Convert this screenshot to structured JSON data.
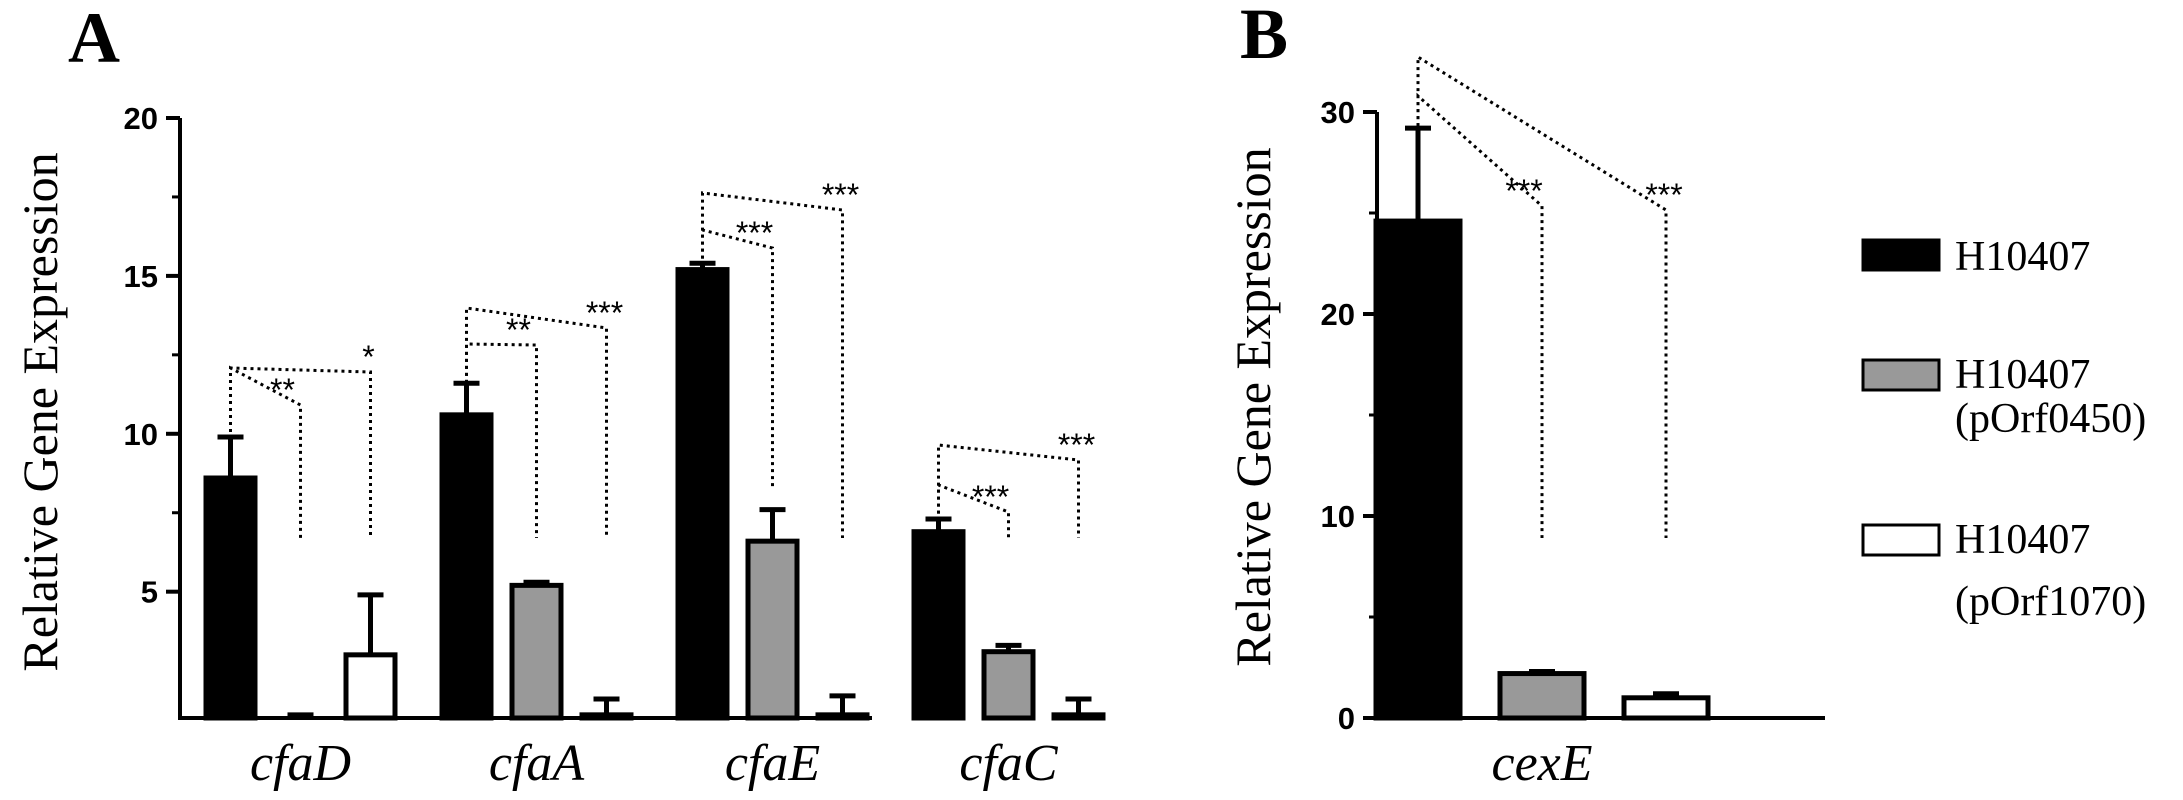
{
  "chart_data": [
    {
      "panel": "A",
      "type": "bar",
      "ylabel": "Relative Gene Expression",
      "y_ticks": [
        5,
        10,
        15,
        20
      ],
      "ylim": [
        1,
        20
      ],
      "categories": [
        "cfaD",
        "cfaA",
        "cfaE",
        "cfaC"
      ],
      "series": [
        {
          "name": "H10407",
          "color": "#000000",
          "values": [
            8.6,
            10.6,
            15.2,
            6.9
          ],
          "errors": [
            1.3,
            1.0,
            0.2,
            0.4
          ]
        },
        {
          "name": "H10407 (pOrf0450)",
          "color": "#999999",
          "values": [
            1.0,
            5.2,
            6.6,
            3.1
          ],
          "errors": [
            0.1,
            0.1,
            1.0,
            0.2
          ]
        },
        {
          "name": "H10407 (pOrf1070)",
          "color": "#ffffff",
          "values": [
            3.0,
            1.1,
            1.1,
            1.1
          ],
          "errors": [
            1.9,
            0.5,
            0.6,
            0.5
          ]
        }
      ],
      "significance": [
        {
          "category": "cfaD",
          "label": "**"
        },
        {
          "category": "cfaD",
          "label": "*"
        },
        {
          "category": "cfaA",
          "label": "**"
        },
        {
          "category": "cfaA",
          "label": "***"
        },
        {
          "category": "cfaE",
          "label": "***"
        },
        {
          "category": "cfaE",
          "label": "***"
        },
        {
          "category": "cfaC",
          "label": "***"
        },
        {
          "category": "cfaC",
          "label": "***"
        }
      ]
    },
    {
      "panel": "B",
      "type": "bar",
      "ylabel": "Relative Gene Expression",
      "y_ticks": [
        0,
        10,
        20,
        30
      ],
      "ylim": [
        0,
        30
      ],
      "categories": [
        "cexE"
      ],
      "series": [
        {
          "name": "H10407",
          "color": "#000000",
          "values": [
            24.6
          ],
          "errors": [
            4.6
          ]
        },
        {
          "name": "H10407 (pOrf0450)",
          "color": "#999999",
          "values": [
            2.2
          ],
          "errors": [
            0.1
          ]
        },
        {
          "name": "H10407 (pOrf1070)",
          "color": "#ffffff",
          "values": [
            1.0
          ],
          "errors": [
            0.2
          ]
        }
      ],
      "significance": [
        {
          "category": "cexE",
          "label": "***"
        },
        {
          "category": "cexE",
          "label": "***"
        }
      ]
    }
  ],
  "legend": {
    "items": [
      {
        "line1": "H10407",
        "line2": "",
        "color": "#000000"
      },
      {
        "line1": "H10407",
        "line2": "(pOrf0450)",
        "color": "#999999"
      },
      {
        "line1": "H10407",
        "line2": "(pOrf1070)",
        "color": "#ffffff"
      }
    ]
  }
}
